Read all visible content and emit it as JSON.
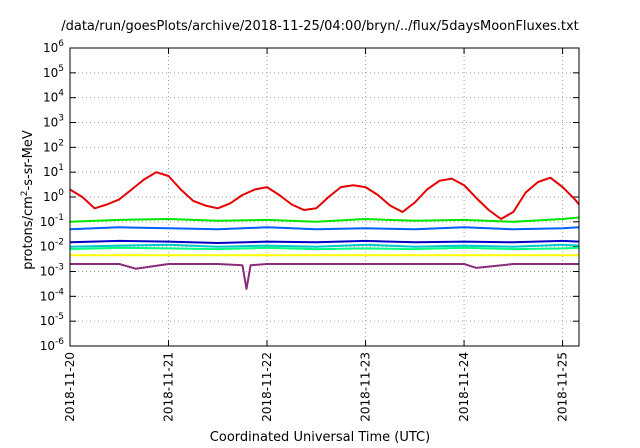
{
  "chart_data": {
    "type": "line",
    "title": "/data/run/goesPlots/archive/2018-11-25/04:00/bryn/../flux/5daysMoonFluxes.txt",
    "xlabel": "Coordinated Universal Time (UTC)",
    "ylabel_parts": [
      "protons/cm",
      "2",
      "-s-sr-MeV"
    ],
    "x_range": [
      "2018-11-20T00:00",
      "2018-11-25T04:00"
    ],
    "x_ticks": [
      "2018-11-20",
      "2018-11-21",
      "2018-11-22",
      "2018-11-23",
      "2018-11-24",
      "2018-11-25"
    ],
    "y_scale": "log",
    "ylim": [
      1e-06,
      1000000.0
    ],
    "y_tick_exponents": [
      -6,
      -5,
      -4,
      -3,
      -2,
      -1,
      0,
      1,
      2,
      3,
      4,
      5,
      6
    ],
    "y_tick_base": "10",
    "grid": true,
    "legend": "none",
    "series": [
      {
        "color": "#e60000",
        "x": [
          "2018-11-20T00:00",
          "2018-11-20T03:00",
          "2018-11-20T06:00",
          "2018-11-20T09:00",
          "2018-11-20T12:00",
          "2018-11-20T15:00",
          "2018-11-20T18:00",
          "2018-11-20T21:00",
          "2018-11-21T00:00",
          "2018-11-21T03:00",
          "2018-11-21T06:00",
          "2018-11-21T09:00",
          "2018-11-21T12:00",
          "2018-11-21T15:00",
          "2018-11-21T18:00",
          "2018-11-21T21:00",
          "2018-11-22T00:00",
          "2018-11-22T03:00",
          "2018-11-22T06:00",
          "2018-11-22T09:00",
          "2018-11-22T12:00",
          "2018-11-22T15:00",
          "2018-11-22T18:00",
          "2018-11-22T21:00",
          "2018-11-23T00:00",
          "2018-11-23T03:00",
          "2018-11-23T06:00",
          "2018-11-23T09:00",
          "2018-11-23T12:00",
          "2018-11-23T15:00",
          "2018-11-23T18:00",
          "2018-11-23T21:00",
          "2018-11-24T00:00",
          "2018-11-24T03:00",
          "2018-11-24T06:00",
          "2018-11-24T09:00",
          "2018-11-24T12:00",
          "2018-11-24T15:00",
          "2018-11-24T18:00",
          "2018-11-24T21:00",
          "2018-11-25T00:00",
          "2018-11-25T03:00",
          "2018-11-25T04:00"
        ],
        "y": [
          2.0,
          1.0,
          0.35,
          0.5,
          0.8,
          2.0,
          5.0,
          10.0,
          7.0,
          2.0,
          0.7,
          0.45,
          0.35,
          0.55,
          1.2,
          2.0,
          2.5,
          1.2,
          0.5,
          0.3,
          0.35,
          1.0,
          2.5,
          3.0,
          2.5,
          1.2,
          0.45,
          0.25,
          0.6,
          2.0,
          4.5,
          5.5,
          3.0,
          0.9,
          0.3,
          0.13,
          0.25,
          1.5,
          4.0,
          6.0,
          2.5,
          0.8,
          0.5
        ]
      },
      {
        "color": "#00e600",
        "x": [
          "2018-11-20T00:00",
          "2018-11-20T12:00",
          "2018-11-21T00:00",
          "2018-11-21T12:00",
          "2018-11-22T00:00",
          "2018-11-22T12:00",
          "2018-11-23T00:00",
          "2018-11-23T12:00",
          "2018-11-24T00:00",
          "2018-11-24T12:00",
          "2018-11-25T00:00",
          "2018-11-25T04:00"
        ],
        "y": [
          0.1,
          0.12,
          0.13,
          0.11,
          0.12,
          0.1,
          0.13,
          0.11,
          0.12,
          0.1,
          0.13,
          0.15
        ]
      },
      {
        "color": "#0060ff",
        "x": [
          "2018-11-20T00:00",
          "2018-11-20T12:00",
          "2018-11-21T00:00",
          "2018-11-21T12:00",
          "2018-11-22T00:00",
          "2018-11-22T12:00",
          "2018-11-23T00:00",
          "2018-11-23T12:00",
          "2018-11-24T00:00",
          "2018-11-24T12:00",
          "2018-11-25T00:00",
          "2018-11-25T04:00"
        ],
        "y": [
          0.05,
          0.06,
          0.055,
          0.05,
          0.06,
          0.05,
          0.055,
          0.05,
          0.06,
          0.05,
          0.055,
          0.06
        ]
      },
      {
        "color": "#00c8c8",
        "x": [
          "2018-11-20T00:00",
          "2018-11-20T12:00",
          "2018-11-21T00:00",
          "2018-11-21T12:00",
          "2018-11-22T00:00",
          "2018-11-22T12:00",
          "2018-11-23T00:00",
          "2018-11-23T12:00",
          "2018-11-24T00:00",
          "2018-11-24T12:00",
          "2018-11-25T00:00",
          "2018-11-25T04:00"
        ],
        "y": [
          0.01,
          0.011,
          0.012,
          0.01,
          0.011,
          0.01,
          0.012,
          0.01,
          0.011,
          0.01,
          0.012,
          0.011
        ]
      },
      {
        "color": "#0000c8",
        "x": [
          "2018-11-20T00:00",
          "2018-11-20T12:00",
          "2018-11-21T00:00",
          "2018-11-21T12:00",
          "2018-11-22T00:00",
          "2018-11-22T12:00",
          "2018-11-23T00:00",
          "2018-11-23T12:00",
          "2018-11-24T00:00",
          "2018-11-24T12:00",
          "2018-11-25T00:00",
          "2018-11-25T04:00"
        ],
        "y": [
          0.015,
          0.017,
          0.016,
          0.014,
          0.016,
          0.015,
          0.017,
          0.015,
          0.016,
          0.015,
          0.017,
          0.016
        ]
      },
      {
        "color": "#00ff80",
        "x": [
          "2018-11-20T00:00",
          "2018-11-20T12:00",
          "2018-11-21T00:00",
          "2018-11-21T12:00",
          "2018-11-22T00:00",
          "2018-11-22T12:00",
          "2018-11-23T00:00",
          "2018-11-23T12:00",
          "2018-11-24T00:00",
          "2018-11-24T12:00",
          "2018-11-25T00:00",
          "2018-11-25T04:00"
        ],
        "y": [
          0.008,
          0.009,
          0.0085,
          0.008,
          0.009,
          0.008,
          0.0085,
          0.008,
          0.009,
          0.008,
          0.0085,
          0.009
        ]
      },
      {
        "color": "#ffff00",
        "x": [
          "2018-11-20T00:00",
          "2018-11-20T12:00",
          "2018-11-21T00:00",
          "2018-11-21T12:00",
          "2018-11-22T00:00",
          "2018-11-22T12:00",
          "2018-11-23T00:00",
          "2018-11-23T12:00",
          "2018-11-24T00:00",
          "2018-11-24T12:00",
          "2018-11-25T00:00",
          "2018-11-25T04:00"
        ],
        "y": [
          0.0045,
          0.0045,
          0.0045,
          0.0045,
          0.0045,
          0.0045,
          0.0045,
          0.0045,
          0.0045,
          0.0045,
          0.0045,
          0.0045
        ]
      },
      {
        "color": "#8b2c7a",
        "x": [
          "2018-11-20T00:00",
          "2018-11-20T12:00",
          "2018-11-20T16:00",
          "2018-11-21T00:00",
          "2018-11-21T12:00",
          "2018-11-21T18:00",
          "2018-11-21T19:00",
          "2018-11-21T20:00",
          "2018-11-22T00:00",
          "2018-11-22T12:00",
          "2018-11-23T00:00",
          "2018-11-23T12:00",
          "2018-11-24T00:00",
          "2018-11-24T03:00",
          "2018-11-24T12:00",
          "2018-11-25T00:00",
          "2018-11-25T04:00"
        ],
        "y": [
          0.002,
          0.002,
          0.0013,
          0.002,
          0.002,
          0.0018,
          0.0002,
          0.0018,
          0.002,
          0.002,
          0.002,
          0.002,
          0.002,
          0.0014,
          0.002,
          0.002,
          0.002
        ]
      }
    ]
  }
}
